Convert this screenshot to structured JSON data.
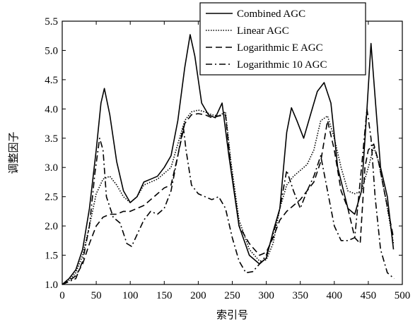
{
  "chart_data": {
    "type": "line",
    "xlabel": "索引号",
    "ylabel": "调整因子",
    "xlim": [
      0,
      500
    ],
    "ylim": [
      1.0,
      5.5
    ],
    "xticks": [
      0,
      50,
      100,
      150,
      200,
      250,
      300,
      350,
      400,
      450,
      500
    ],
    "yticks": [
      1.0,
      1.5,
      2.0,
      2.5,
      3.0,
      3.5,
      4.0,
      4.5,
      5.0,
      5.5
    ],
    "tick_format": 1,
    "grid": false,
    "legend_position": "top-right",
    "series": [
      {
        "name": "Combined AGC",
        "dash": "solid",
        "points": [
          [
            0,
            1.0
          ],
          [
            10,
            1.1
          ],
          [
            20,
            1.25
          ],
          [
            30,
            1.6
          ],
          [
            40,
            2.3
          ],
          [
            50,
            3.3
          ],
          [
            57,
            4.1
          ],
          [
            62,
            4.35
          ],
          [
            70,
            3.9
          ],
          [
            80,
            3.1
          ],
          [
            90,
            2.6
          ],
          [
            100,
            2.4
          ],
          [
            110,
            2.5
          ],
          [
            120,
            2.75
          ],
          [
            130,
            2.8
          ],
          [
            140,
            2.85
          ],
          [
            150,
            3.0
          ],
          [
            160,
            3.2
          ],
          [
            170,
            3.8
          ],
          [
            180,
            4.7
          ],
          [
            188,
            5.27
          ],
          [
            195,
            4.9
          ],
          [
            205,
            4.1
          ],
          [
            215,
            3.9
          ],
          [
            225,
            3.85
          ],
          [
            235,
            4.1
          ],
          [
            245,
            3.2
          ],
          [
            260,
            2.0
          ],
          [
            275,
            1.5
          ],
          [
            290,
            1.35
          ],
          [
            300,
            1.45
          ],
          [
            310,
            1.9
          ],
          [
            320,
            2.3
          ],
          [
            330,
            3.6
          ],
          [
            337,
            4.02
          ],
          [
            345,
            3.8
          ],
          [
            355,
            3.5
          ],
          [
            365,
            3.9
          ],
          [
            375,
            4.3
          ],
          [
            385,
            4.45
          ],
          [
            395,
            4.1
          ],
          [
            405,
            3.0
          ],
          [
            420,
            2.3
          ],
          [
            430,
            2.2
          ],
          [
            440,
            2.6
          ],
          [
            448,
            4.0
          ],
          [
            454,
            5.12
          ],
          [
            460,
            4.2
          ],
          [
            468,
            3.0
          ],
          [
            478,
            2.5
          ],
          [
            487,
            1.6
          ]
        ]
      },
      {
        "name": "Linear AGC",
        "dash": "dotted",
        "points": [
          [
            0,
            1.0
          ],
          [
            10,
            1.07
          ],
          [
            20,
            1.2
          ],
          [
            30,
            1.5
          ],
          [
            40,
            2.0
          ],
          [
            50,
            2.55
          ],
          [
            60,
            2.8
          ],
          [
            70,
            2.85
          ],
          [
            80,
            2.7
          ],
          [
            90,
            2.5
          ],
          [
            100,
            2.4
          ],
          [
            110,
            2.5
          ],
          [
            120,
            2.7
          ],
          [
            130,
            2.75
          ],
          [
            140,
            2.8
          ],
          [
            150,
            2.9
          ],
          [
            160,
            3.0
          ],
          [
            170,
            3.4
          ],
          [
            180,
            3.8
          ],
          [
            190,
            3.95
          ],
          [
            200,
            3.98
          ],
          [
            210,
            3.95
          ],
          [
            220,
            3.9
          ],
          [
            230,
            3.88
          ],
          [
            240,
            3.95
          ],
          [
            248,
            3.1
          ],
          [
            260,
            2.1
          ],
          [
            275,
            1.6
          ],
          [
            290,
            1.4
          ],
          [
            300,
            1.42
          ],
          [
            310,
            1.7
          ],
          [
            320,
            2.3
          ],
          [
            330,
            2.7
          ],
          [
            340,
            2.85
          ],
          [
            350,
            2.95
          ],
          [
            360,
            3.05
          ],
          [
            370,
            3.3
          ],
          [
            380,
            3.8
          ],
          [
            390,
            3.88
          ],
          [
            400,
            3.5
          ],
          [
            410,
            3.0
          ],
          [
            420,
            2.6
          ],
          [
            430,
            2.55
          ],
          [
            440,
            2.6
          ],
          [
            450,
            3.0
          ],
          [
            458,
            3.35
          ],
          [
            465,
            3.1
          ],
          [
            475,
            2.5
          ],
          [
            487,
            1.7
          ]
        ]
      },
      {
        "name": "Logarithmic E AGC",
        "dash": "dashed",
        "points": [
          [
            0,
            1.0
          ],
          [
            10,
            1.06
          ],
          [
            20,
            1.15
          ],
          [
            30,
            1.35
          ],
          [
            40,
            1.7
          ],
          [
            50,
            2.0
          ],
          [
            60,
            2.15
          ],
          [
            70,
            2.2
          ],
          [
            80,
            2.2
          ],
          [
            90,
            2.25
          ],
          [
            100,
            2.25
          ],
          [
            110,
            2.3
          ],
          [
            120,
            2.35
          ],
          [
            130,
            2.45
          ],
          [
            140,
            2.55
          ],
          [
            150,
            2.65
          ],
          [
            160,
            2.7
          ],
          [
            170,
            3.2
          ],
          [
            180,
            3.75
          ],
          [
            190,
            3.9
          ],
          [
            200,
            3.92
          ],
          [
            210,
            3.9
          ],
          [
            220,
            3.85
          ],
          [
            230,
            3.88
          ],
          [
            240,
            3.9
          ],
          [
            248,
            3.0
          ],
          [
            260,
            2.0
          ],
          [
            275,
            1.7
          ],
          [
            290,
            1.5
          ],
          [
            300,
            1.55
          ],
          [
            310,
            1.8
          ],
          [
            320,
            2.1
          ],
          [
            330,
            2.25
          ],
          [
            340,
            2.35
          ],
          [
            350,
            2.45
          ],
          [
            360,
            2.6
          ],
          [
            370,
            2.75
          ],
          [
            380,
            3.1
          ],
          [
            390,
            3.8
          ],
          [
            400,
            3.3
          ],
          [
            410,
            2.6
          ],
          [
            420,
            2.3
          ],
          [
            430,
            1.8
          ],
          [
            438,
            1.7
          ],
          [
            445,
            3.0
          ],
          [
            450,
            3.3
          ],
          [
            458,
            3.4
          ],
          [
            465,
            3.1
          ],
          [
            475,
            2.5
          ],
          [
            487,
            1.8
          ]
        ]
      },
      {
        "name": "Logarithmic 10 AGC",
        "dash": "dashdot",
        "points": [
          [
            0,
            1.0
          ],
          [
            10,
            1.05
          ],
          [
            20,
            1.1
          ],
          [
            30,
            1.4
          ],
          [
            40,
            2.0
          ],
          [
            48,
            2.9
          ],
          [
            55,
            3.5
          ],
          [
            60,
            3.3
          ],
          [
            65,
            2.5
          ],
          [
            75,
            2.15
          ],
          [
            85,
            2.05
          ],
          [
            95,
            1.7
          ],
          [
            102,
            1.65
          ],
          [
            110,
            1.85
          ],
          [
            120,
            2.1
          ],
          [
            130,
            2.25
          ],
          [
            140,
            2.2
          ],
          [
            150,
            2.3
          ],
          [
            160,
            2.6
          ],
          [
            170,
            3.2
          ],
          [
            178,
            3.7
          ],
          [
            182,
            3.3
          ],
          [
            190,
            2.7
          ],
          [
            200,
            2.55
          ],
          [
            210,
            2.5
          ],
          [
            220,
            2.45
          ],
          [
            230,
            2.5
          ],
          [
            240,
            2.3
          ],
          [
            250,
            1.8
          ],
          [
            260,
            1.4
          ],
          [
            270,
            1.2
          ],
          [
            280,
            1.22
          ],
          [
            290,
            1.35
          ],
          [
            300,
            1.5
          ],
          [
            310,
            1.85
          ],
          [
            320,
            2.3
          ],
          [
            330,
            2.95
          ],
          [
            340,
            2.6
          ],
          [
            350,
            2.3
          ],
          [
            360,
            2.6
          ],
          [
            370,
            2.85
          ],
          [
            380,
            3.2
          ],
          [
            390,
            2.6
          ],
          [
            400,
            2.0
          ],
          [
            410,
            1.75
          ],
          [
            420,
            1.75
          ],
          [
            430,
            1.8
          ],
          [
            440,
            3.0
          ],
          [
            448,
            4.0
          ],
          [
            454,
            3.5
          ],
          [
            460,
            2.5
          ],
          [
            468,
            1.6
          ],
          [
            478,
            1.2
          ],
          [
            488,
            1.1
          ]
        ]
      }
    ]
  }
}
